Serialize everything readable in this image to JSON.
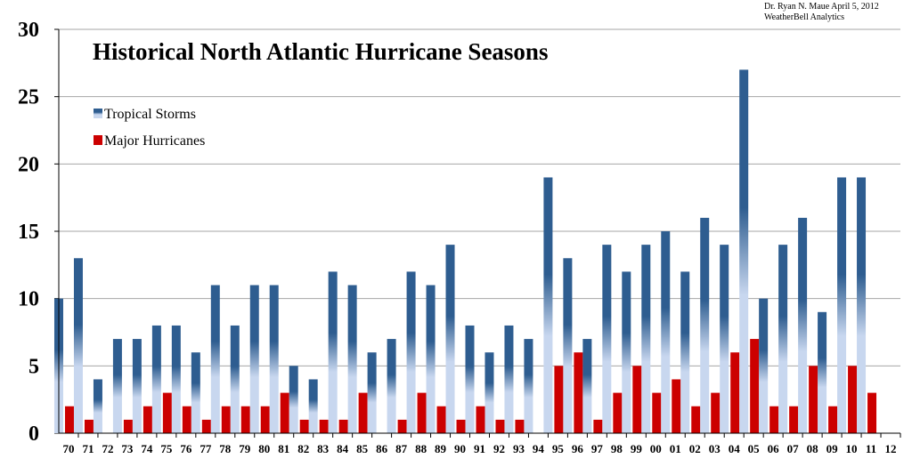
{
  "credit": {
    "line1": "Dr. Ryan N. Maue  April 5, 2012",
    "line2": "WeatherBell Analytics"
  },
  "chart_data": {
    "type": "bar",
    "title": "Historical North Atlantic Hurricane Seasons",
    "xlabel": "",
    "ylabel": "",
    "ylim": [
      0,
      30
    ],
    "yticks": [
      0,
      5,
      10,
      15,
      20,
      25,
      30
    ],
    "grid": true,
    "legend_position": "top-left",
    "categories": [
      "70",
      "71",
      "72",
      "73",
      "74",
      "75",
      "76",
      "77",
      "78",
      "79",
      "80",
      "81",
      "82",
      "83",
      "84",
      "85",
      "86",
      "87",
      "88",
      "89",
      "90",
      "91",
      "92",
      "93",
      "94",
      "95",
      "96",
      "97",
      "98",
      "99",
      "00",
      "01",
      "02",
      "03",
      "04",
      "05",
      "06",
      "07",
      "08",
      "09",
      "10",
      "11",
      "12"
    ],
    "series": [
      {
        "name": "Tropical Storms",
        "color": "#2e5d90",
        "color_light": "#c8d7ef",
        "values": [
          10,
          13,
          4,
          7,
          7,
          8,
          8,
          6,
          11,
          8,
          11,
          11,
          5,
          4,
          12,
          11,
          6,
          7,
          12,
          11,
          14,
          8,
          6,
          8,
          7,
          19,
          13,
          7,
          14,
          12,
          14,
          15,
          12,
          16,
          14,
          27,
          10,
          14,
          16,
          9,
          19,
          19,
          null
        ]
      },
      {
        "name": "Major Hurricanes",
        "color": "#cc0000",
        "values": [
          2,
          1,
          0,
          1,
          2,
          3,
          2,
          1,
          2,
          2,
          2,
          3,
          1,
          1,
          1,
          3,
          0,
          1,
          3,
          2,
          1,
          2,
          1,
          1,
          0,
          5,
          6,
          1,
          3,
          5,
          3,
          4,
          2,
          3,
          6,
          7,
          2,
          2,
          5,
          2,
          5,
          3,
          null
        ]
      }
    ]
  }
}
